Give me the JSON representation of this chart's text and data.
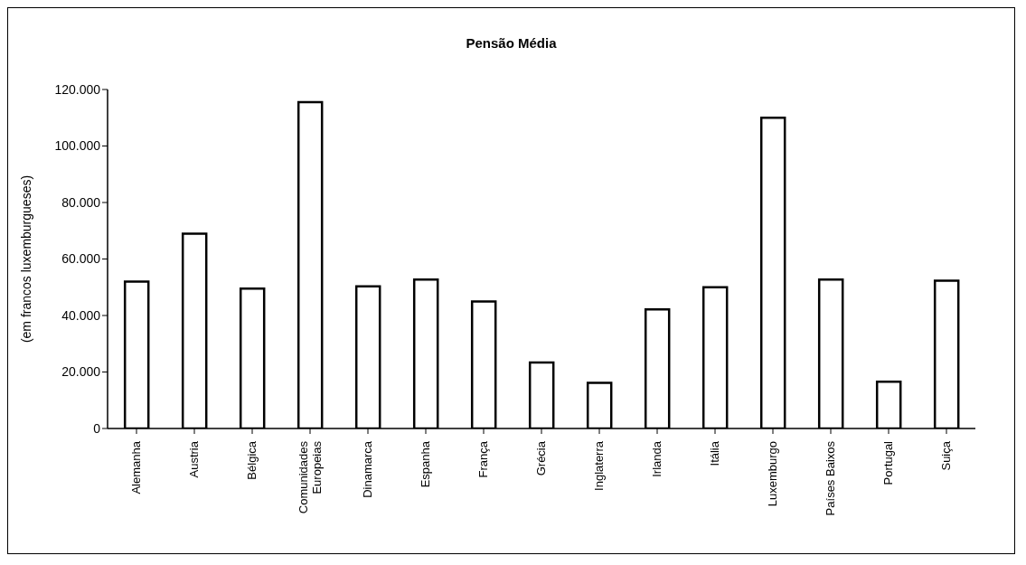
{
  "chart_data": {
    "type": "bar",
    "title": "Pensão Média",
    "ylabel": "(em francos luxemburgueses)",
    "categories": [
      "Alemanha",
      "Austria",
      "Bélgica",
      "Comunidades Europeias",
      "Dinamarca",
      "Espanha",
      "França",
      "Grécia",
      "Inglaterra",
      "Irlanda",
      "Itália",
      "Luxemburgo",
      "Países Baixos",
      "Portugal",
      "Suiça"
    ],
    "values": [
      52000,
      69000,
      49500,
      115500,
      50300,
      52700,
      45000,
      23400,
      16200,
      42200,
      50000,
      110000,
      52700,
      16600,
      52300
    ],
    "color": "#ffffff",
    "ylim": [
      0,
      120000
    ],
    "yticks": [
      0,
      {
        "value": 20000,
        "label": "20.000"
      },
      {
        "value": 40000,
        "label": "40.000"
      },
      {
        "value": 60000,
        "label": "60.000"
      },
      {
        "value": 80000,
        "label": "80.000"
      },
      {
        "value": 100000,
        "label": "100.000"
      },
      {
        "value": 120000,
        "label": "120.000"
      }
    ],
    "grid": false
  }
}
